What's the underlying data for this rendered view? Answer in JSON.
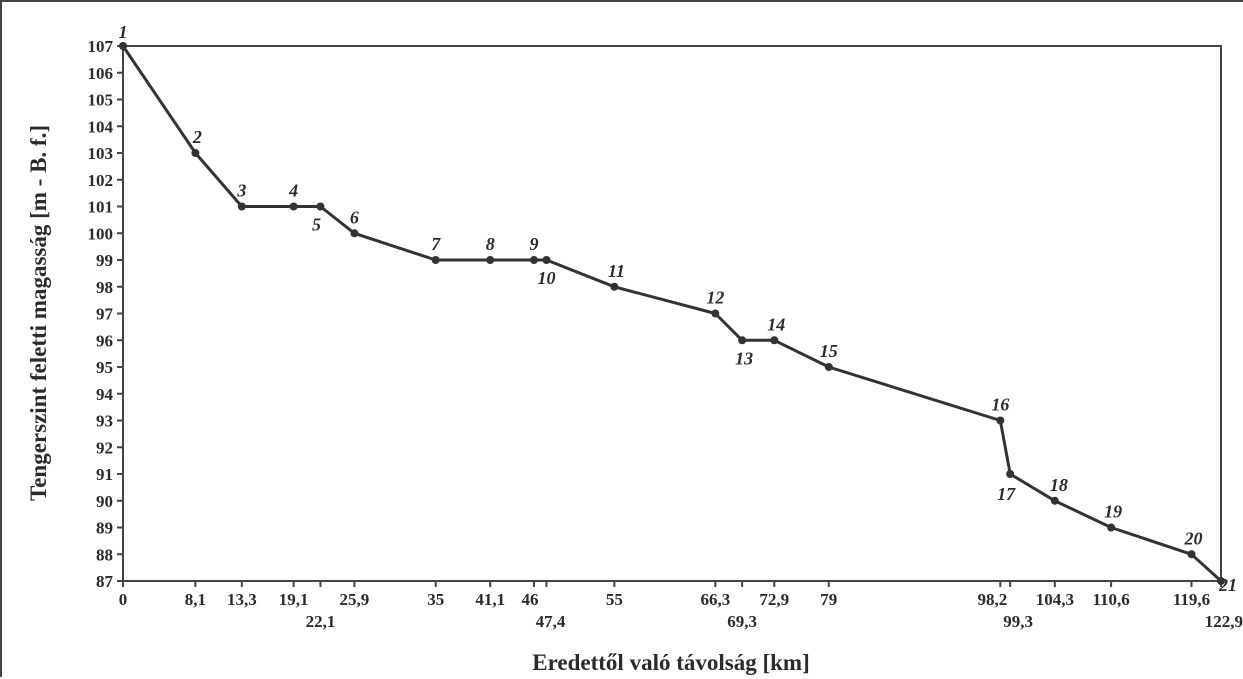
{
  "chart_data": {
    "type": "line",
    "xlabel": "Eredettől való távolság [km]",
    "ylabel": "Tengerszint feletti magasság [m - B. f.]",
    "xlim": [
      0,
      122.9
    ],
    "ylim": [
      87,
      107
    ],
    "grid": false,
    "y_ticks": [
      "87",
      "88",
      "89",
      "90",
      "91",
      "92",
      "93",
      "94",
      "95",
      "96",
      "97",
      "98",
      "99",
      "100",
      "101",
      "102",
      "103",
      "104",
      "105",
      "106",
      "107"
    ],
    "points": [
      {
        "label": "1",
        "x": 0,
        "x_label": "0",
        "y": 107
      },
      {
        "label": "2",
        "x": 8.1,
        "x_label": "8,1",
        "y": 103
      },
      {
        "label": "3",
        "x": 13.3,
        "x_label": "13,3",
        "y": 101
      },
      {
        "label": "4",
        "x": 19.1,
        "x_label": "19,1",
        "y": 101
      },
      {
        "label": "5",
        "x": 22.1,
        "x_label": "22,1",
        "y": 101
      },
      {
        "label": "6",
        "x": 25.9,
        "x_label": "25,9",
        "y": 100
      },
      {
        "label": "7",
        "x": 35,
        "x_label": "35",
        "y": 99
      },
      {
        "label": "8",
        "x": 41.1,
        "x_label": "41,1",
        "y": 99
      },
      {
        "label": "9",
        "x": 46,
        "x_label": "46",
        "y": 99
      },
      {
        "label": "10",
        "x": 47.4,
        "x_label": "47,4",
        "y": 99
      },
      {
        "label": "11",
        "x": 55,
        "x_label": "55",
        "y": 98
      },
      {
        "label": "12",
        "x": 66.3,
        "x_label": "66,3",
        "y": 97
      },
      {
        "label": "13",
        "x": 69.3,
        "x_label": "69,3",
        "y": 96
      },
      {
        "label": "14",
        "x": 72.9,
        "x_label": "72,9",
        "y": 96
      },
      {
        "label": "15",
        "x": 79,
        "x_label": "79",
        "y": 95
      },
      {
        "label": "16",
        "x": 98.2,
        "x_label": "98,2",
        "y": 93
      },
      {
        "label": "17",
        "x": 99.3,
        "x_label": "99,3",
        "y": 91
      },
      {
        "label": "18",
        "x": 104.3,
        "x_label": "104,3",
        "y": 90
      },
      {
        "label": "19",
        "x": 110.6,
        "x_label": "110,6",
        "y": 89
      },
      {
        "label": "20",
        "x": 119.6,
        "x_label": "119,6",
        "y": 88
      },
      {
        "label": "21",
        "x": 122.9,
        "x_label": "122,9",
        "y": 87
      }
    ],
    "colors": {
      "line": "#333333",
      "marker": "#333333",
      "frame": "#444444"
    }
  }
}
